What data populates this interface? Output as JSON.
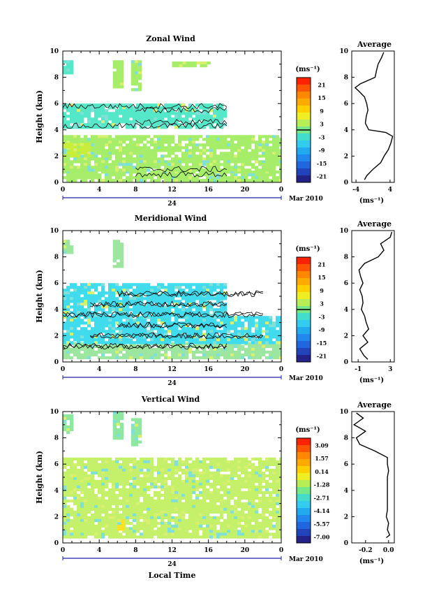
{
  "chart_data": [
    {
      "type": "heatmap",
      "title": "Zonal Wind",
      "ylabel": "Height (km)",
      "xlabel": "",
      "xticks": [
        "0",
        "4",
        "8",
        "12",
        "16",
        "20",
        "0"
      ],
      "yticks": [
        "0",
        "2",
        "4",
        "6",
        "8",
        "10"
      ],
      "xlim": [
        0,
        24
      ],
      "ylim": [
        0,
        10
      ],
      "date_label": "24",
      "month_label": "Mar 2010",
      "colorbar": {
        "unit": "(ms⁻¹)",
        "ticks": [
          "21",
          "15",
          "9",
          "3",
          "-3",
          "-9",
          "-15",
          "-21"
        ],
        "zero_line": "0",
        "colors": [
          "#ff2200",
          "#ff5500",
          "#ff8800",
          "#ffaa00",
          "#ffd000",
          "#eeee22",
          "#b8ee55",
          "#77e888",
          "#44ddcc",
          "#33ccee",
          "#22aaee",
          "#2288ee",
          "#2266dd",
          "#2244bb",
          "#222288"
        ]
      },
      "regions": [
        {
          "t0": 0,
          "t1": 24,
          "h0": 0.2,
          "h1": 0.9,
          "level": "weak_westerly"
        },
        {
          "t0": 0,
          "t1": 24,
          "h0": 0.9,
          "h1": 3.6,
          "level": "weak_westerly"
        },
        {
          "t0": 0,
          "t1": 3,
          "h0": 2.0,
          "h1": 3.0,
          "level": "moderate_westerly"
        },
        {
          "t0": 0,
          "t1": 18,
          "h0": 4.2,
          "h1": 6.0,
          "level": "easterly"
        },
        {
          "t0": 0,
          "t1": 1,
          "h0": 8.3,
          "h1": 9.3,
          "level": "easterly"
        },
        {
          "t0": 5.5,
          "t1": 6.5,
          "h0": 7.3,
          "h1": 9.3,
          "level": "weak_westerly"
        },
        {
          "t0": 7.5,
          "t1": 8.5,
          "h0": 7.0,
          "h1": 9.3,
          "level": "weak_westerly"
        },
        {
          "t0": 12,
          "t1": 16,
          "h0": 8.8,
          "h1": 9.2,
          "level": "weak_westerly"
        }
      ],
      "average": {
        "xticks": [
          "-4",
          "4"
        ],
        "xlim": [
          -5,
          5
        ],
        "title": "Average",
        "xlabel": "(ms⁻¹)",
        "heights": [
          0.2,
          0.5,
          1.0,
          1.5,
          2.0,
          2.5,
          3.0,
          3.5,
          3.8,
          4.0,
          4.5,
          5.0,
          5.5,
          6.0,
          6.5,
          7.0,
          7.2,
          7.5,
          8.0,
          8.5,
          9.0,
          9.5,
          9.9
        ],
        "values": [
          -2.0,
          -1.5,
          0.0,
          1.8,
          2.6,
          3.6,
          4.2,
          4.6,
          3.0,
          -1.0,
          -1.8,
          -1.6,
          -1.2,
          -1.5,
          -2.0,
          -3.5,
          -4.2,
          -3.0,
          0.5,
          0.8,
          1.2,
          2.0,
          2.5
        ]
      }
    },
    {
      "type": "heatmap",
      "title": "Meridional Wind",
      "ylabel": "Height (km)",
      "xlabel": "",
      "xticks": [
        "0",
        "4",
        "8",
        "12",
        "16",
        "20",
        "0"
      ],
      "yticks": [
        "0",
        "2",
        "4",
        "6",
        "8",
        "10"
      ],
      "xlim": [
        0,
        24
      ],
      "ylim": [
        0,
        10
      ],
      "date_label": "24",
      "month_label": "Mar 2010",
      "colorbar": {
        "unit": "(ms⁻¹)",
        "ticks": [
          "21",
          "15",
          "9",
          "3",
          "-3",
          "-9",
          "-15",
          "-21"
        ],
        "zero_line": "0",
        "colors": [
          "#ff2200",
          "#ff5500",
          "#ff8800",
          "#ffaa00",
          "#ffd000",
          "#eeee22",
          "#b8ee55",
          "#77e888",
          "#44ddcc",
          "#33ccee",
          "#22aaee",
          "#2288ee",
          "#2266dd",
          "#2244bb",
          "#222288"
        ]
      },
      "regions": [
        {
          "t0": 0,
          "t1": 24,
          "h0": 0.3,
          "h1": 1.5,
          "level": "weak_southerly"
        },
        {
          "t0": 0,
          "t1": 24,
          "h0": 1.5,
          "h1": 3.5,
          "level": "northerly"
        },
        {
          "t0": 0,
          "t1": 18,
          "h0": 3.5,
          "h1": 6.0,
          "level": "northerly"
        },
        {
          "t0": 0,
          "t1": 1,
          "h0": 8.3,
          "h1": 9.3,
          "level": "weak_southerly"
        },
        {
          "t0": 5.5,
          "t1": 6.5,
          "h0": 7.3,
          "h1": 9.3,
          "level": "weak_southerly"
        }
      ],
      "average": {
        "xticks": [
          "-1",
          "3"
        ],
        "xlim": [
          -1.8,
          3.5
        ],
        "title": "Average",
        "xlabel": "(ms⁻¹)",
        "heights": [
          0.2,
          0.5,
          1.0,
          1.5,
          2.0,
          2.5,
          3.0,
          3.5,
          4.0,
          4.5,
          5.0,
          5.5,
          6.0,
          6.5,
          7.0,
          7.5,
          8.0,
          8.5,
          9.0,
          9.5,
          9.9
        ],
        "values": [
          0.2,
          -0.3,
          -0.8,
          0.2,
          -0.4,
          0.3,
          0.0,
          -0.2,
          -0.6,
          -0.4,
          -0.5,
          -0.8,
          -0.4,
          -0.7,
          -0.9,
          -0.2,
          1.5,
          2.2,
          1.8,
          3.0,
          3.2
        ]
      }
    },
    {
      "type": "heatmap",
      "title": "Vertical Wind",
      "ylabel": "Height (km)",
      "xlabel": "Local Time",
      "xticks": [
        "0",
        "4",
        "8",
        "12",
        "16",
        "20",
        "0"
      ],
      "yticks": [
        "0",
        "2",
        "4",
        "6",
        "8",
        "10"
      ],
      "xlim": [
        0,
        24
      ],
      "ylim": [
        0,
        10
      ],
      "date_label": "24",
      "month_label": "Mar 2010",
      "colorbar": {
        "unit": "(ms⁻¹)",
        "ticks": [
          "3.09",
          "1.57",
          "0.14",
          "-1.28",
          "-2.71",
          "-4.14",
          "-5.57",
          "-7.00"
        ],
        "zero_line": "",
        "colors": [
          "#ff2200",
          "#ff5500",
          "#ff8800",
          "#ffaa00",
          "#ffd000",
          "#eeee22",
          "#b8ee55",
          "#77e888",
          "#44ddcc",
          "#33ccee",
          "#22aaee",
          "#2288ee",
          "#2266dd",
          "#2244bb",
          "#222288"
        ]
      },
      "regions": [
        {
          "t0": 0,
          "t1": 24,
          "h0": 0.4,
          "h1": 1.2,
          "level": "near_zero"
        },
        {
          "t0": 0,
          "t1": 24,
          "h0": 1.2,
          "h1": 6.5,
          "level": "near_zero"
        },
        {
          "t0": 0,
          "t1": 1,
          "h0": 8.5,
          "h1": 9.8,
          "level": "slight_down"
        },
        {
          "t0": 5.5,
          "t1": 6.5,
          "h0": 8.0,
          "h1": 10.0,
          "level": "slight_down"
        },
        {
          "t0": 7.5,
          "t1": 8.5,
          "h0": 7.5,
          "h1": 9.5,
          "level": "slight_down"
        },
        {
          "t0": 6.0,
          "t1": 6.5,
          "h0": 1.0,
          "h1": 1.8,
          "level": "updraft"
        }
      ],
      "average": {
        "xticks": [
          "-0.2",
          "0.0"
        ],
        "xlim": [
          -0.32,
          0.05
        ],
        "title": "Average",
        "xlabel": "(ms⁻¹)",
        "heights": [
          0.4,
          0.6,
          1.0,
          1.5,
          2.0,
          2.5,
          3.0,
          3.5,
          4.0,
          4.5,
          5.0,
          5.5,
          6.0,
          6.5,
          7.0,
          7.5,
          8.0,
          8.5,
          9.0,
          9.5,
          9.9
        ],
        "values": [
          -0.02,
          0.01,
          -0.01,
          0.0,
          -0.02,
          -0.01,
          -0.01,
          -0.01,
          -0.01,
          -0.01,
          -0.01,
          0.0,
          -0.01,
          -0.01,
          -0.12,
          -0.25,
          -0.28,
          -0.2,
          -0.3,
          -0.22,
          -0.28
        ]
      }
    }
  ]
}
